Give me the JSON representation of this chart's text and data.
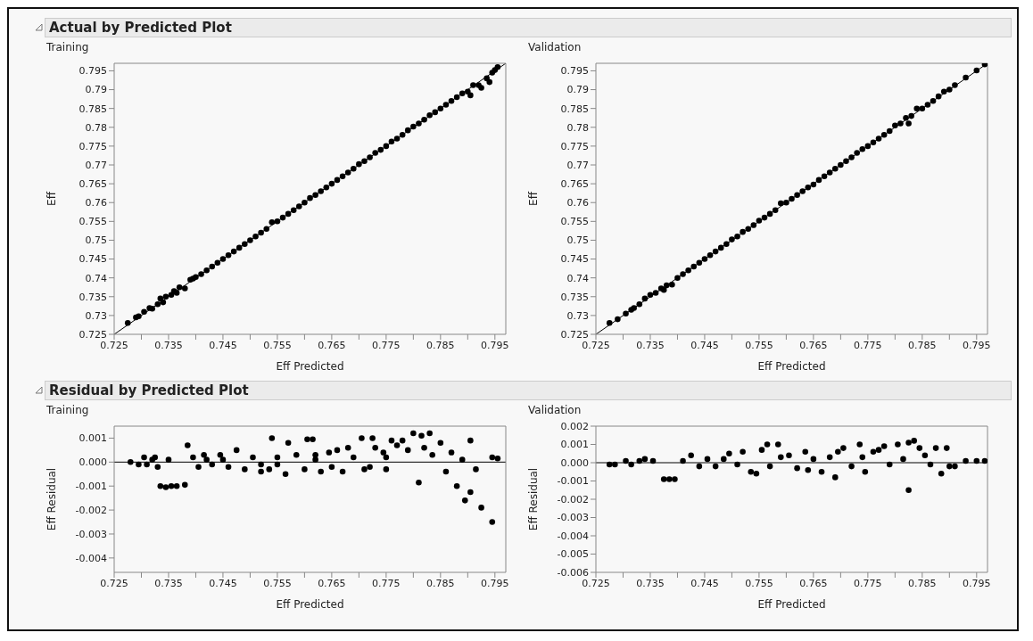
{
  "chart_data": [
    {
      "type": "scatter",
      "title": "Actual by Predicted Plot",
      "subtitle": "Training",
      "xlabel": "Eff Predicted",
      "ylabel": "Eff",
      "grid": false,
      "xlim": [
        0.725,
        0.797
      ],
      "xticks": [
        0.725,
        {
          "value": 0.73,
          "label": null
        },
        0.735,
        {
          "value": 0.74,
          "label": null
        },
        0.745,
        {
          "value": 0.75,
          "label": null
        },
        0.755,
        {
          "value": 0.76,
          "label": null
        },
        0.765,
        {
          "value": 0.77,
          "label": null
        },
        0.775,
        {
          "value": 0.78,
          "label": null
        },
        0.785,
        {
          "value": 0.79,
          "label": null
        },
        0.795
      ],
      "ylim": [
        0.725,
        0.797
      ],
      "yticks": [
        0.725,
        0.73,
        0.735,
        0.74,
        0.745,
        0.75,
        0.755,
        0.76,
        0.765,
        0.77,
        0.775,
        0.78,
        0.785,
        0.79,
        0.795
      ],
      "series": [
        {
          "type": "scatter",
          "marker": "circle",
          "color": "#000000",
          "x": [
            0.7275,
            0.729,
            0.7295,
            0.7305,
            0.7315,
            0.732,
            0.733,
            0.7335,
            0.734,
            0.7345,
            0.7355,
            0.736,
            0.7365,
            0.737,
            0.738,
            0.739,
            0.7395,
            0.74,
            0.741,
            0.742,
            0.743,
            0.744,
            0.745,
            0.746,
            0.747,
            0.748,
            0.749,
            0.75,
            0.751,
            0.752,
            0.753,
            0.754,
            0.755,
            0.756,
            0.757,
            0.758,
            0.759,
            0.76,
            0.761,
            0.762,
            0.763,
            0.764,
            0.765,
            0.766,
            0.767,
            0.768,
            0.769,
            0.77,
            0.771,
            0.772,
            0.773,
            0.774,
            0.775,
            0.776,
            0.777,
            0.778,
            0.779,
            0.78,
            0.781,
            0.782,
            0.783,
            0.784,
            0.785,
            0.786,
            0.787,
            0.788,
            0.789,
            0.79,
            0.7905,
            0.791,
            0.792,
            0.7925,
            0.7935,
            0.794,
            0.7945,
            0.795,
            0.7955
          ],
          "values": [
            0.728,
            0.7295,
            0.7298,
            0.731,
            0.732,
            0.7318,
            0.733,
            0.7345,
            0.7335,
            0.735,
            0.7355,
            0.7365,
            0.736,
            0.7375,
            0.7372,
            0.7395,
            0.7398,
            0.7402,
            0.741,
            0.742,
            0.743,
            0.744,
            0.745,
            0.746,
            0.747,
            0.748,
            0.749,
            0.75,
            0.751,
            0.752,
            0.753,
            0.7548,
            0.755,
            0.756,
            0.757,
            0.758,
            0.759,
            0.76,
            0.7612,
            0.762,
            0.763,
            0.764,
            0.765,
            0.766,
            0.767,
            0.768,
            0.769,
            0.7702,
            0.771,
            0.772,
            0.7732,
            0.774,
            0.775,
            0.7762,
            0.777,
            0.778,
            0.7792,
            0.7802,
            0.781,
            0.782,
            0.7832,
            0.784,
            0.785,
            0.786,
            0.787,
            0.788,
            0.789,
            0.7895,
            0.7885,
            0.7912,
            0.7912,
            0.7905,
            0.793,
            0.792,
            0.7945,
            0.7952,
            0.796
          ]
        },
        {
          "type": "line",
          "color": "#000000",
          "x": [
            0.725,
            0.797
          ],
          "values": [
            0.725,
            0.797
          ]
        }
      ]
    },
    {
      "type": "scatter",
      "subtitle": "Validation",
      "xlabel": "Eff Predicted",
      "ylabel": "Eff",
      "grid": false,
      "xlim": [
        0.725,
        0.797
      ],
      "xticks": [
        0.725,
        {
          "value": 0.73,
          "label": null
        },
        0.735,
        {
          "value": 0.74,
          "label": null
        },
        0.745,
        {
          "value": 0.75,
          "label": null
        },
        0.755,
        {
          "value": 0.76,
          "label": null
        },
        0.765,
        {
          "value": 0.77,
          "label": null
        },
        0.775,
        {
          "value": 0.78,
          "label": null
        },
        0.785,
        {
          "value": 0.79,
          "label": null
        },
        0.795
      ],
      "ylim": [
        0.725,
        0.797
      ],
      "yticks": [
        0.725,
        0.73,
        0.735,
        0.74,
        0.745,
        0.75,
        0.755,
        0.76,
        0.765,
        0.77,
        0.775,
        0.78,
        0.785,
        0.79,
        0.795
      ],
      "series": [
        {
          "type": "scatter",
          "marker": "circle",
          "color": "#000000",
          "x": [
            0.7275,
            0.729,
            0.7305,
            0.7315,
            0.732,
            0.733,
            0.734,
            0.735,
            0.736,
            0.737,
            0.7375,
            0.738,
            0.739,
            0.74,
            0.741,
            0.742,
            0.743,
            0.744,
            0.745,
            0.746,
            0.747,
            0.748,
            0.749,
            0.75,
            0.751,
            0.752,
            0.753,
            0.754,
            0.755,
            0.756,
            0.757,
            0.758,
            0.759,
            0.76,
            0.761,
            0.762,
            0.763,
            0.764,
            0.765,
            0.766,
            0.767,
            0.768,
            0.769,
            0.77,
            0.771,
            0.772,
            0.773,
            0.774,
            0.775,
            0.776,
            0.777,
            0.778,
            0.779,
            0.78,
            0.781,
            0.782,
            0.7825,
            0.783,
            0.784,
            0.785,
            0.786,
            0.787,
            0.788,
            0.789,
            0.79,
            0.791,
            0.793,
            0.795,
            0.7965
          ],
          "values": [
            0.728,
            0.729,
            0.7305,
            0.7315,
            0.732,
            0.733,
            0.7345,
            0.7355,
            0.736,
            0.7372,
            0.7368,
            0.738,
            0.7382,
            0.74,
            0.741,
            0.742,
            0.743,
            0.744,
            0.745,
            0.746,
            0.747,
            0.748,
            0.749,
            0.7502,
            0.751,
            0.7522,
            0.753,
            0.754,
            0.7552,
            0.756,
            0.757,
            0.758,
            0.7598,
            0.76,
            0.761,
            0.762,
            0.763,
            0.764,
            0.7648,
            0.766,
            0.767,
            0.768,
            0.769,
            0.77,
            0.771,
            0.772,
            0.7732,
            0.7742,
            0.775,
            0.776,
            0.777,
            0.778,
            0.779,
            0.7805,
            0.781,
            0.7825,
            0.781,
            0.783,
            0.785,
            0.785,
            0.786,
            0.787,
            0.7882,
            0.7895,
            0.79,
            0.7912,
            0.7932,
            0.7951,
            0.7967
          ]
        },
        {
          "type": "line",
          "color": "#000000",
          "x": [
            0.725,
            0.797
          ],
          "values": [
            0.725,
            0.797
          ]
        }
      ]
    },
    {
      "type": "scatter",
      "title": "Residual by Predicted Plot",
      "subtitle": "Training",
      "xlabel": "Eff Predicted",
      "ylabel": "Eff Residual",
      "grid": false,
      "xlim": [
        0.725,
        0.797
      ],
      "xticks": [
        0.725,
        {
          "value": 0.73,
          "label": null
        },
        0.735,
        {
          "value": 0.74,
          "label": null
        },
        0.745,
        {
          "value": 0.75,
          "label": null
        },
        0.755,
        {
          "value": 0.76,
          "label": null
        },
        0.765,
        {
          "value": 0.77,
          "label": null
        },
        0.775,
        {
          "value": 0.78,
          "label": null
        },
        0.785,
        {
          "value": 0.79,
          "label": null
        },
        0.795
      ],
      "ylim": [
        -0.0046,
        0.0015
      ],
      "yticks": [
        -0.004,
        -0.003,
        -0.002,
        -0.001,
        {
          "value": 0,
          "label": "0.000"
        },
        0.001
      ],
      "ref_lines": [
        {
          "axis": "y",
          "value": 0,
          "color": "#000000"
        }
      ],
      "series": [
        {
          "type": "scatter",
          "marker": "circle",
          "color": "#000000",
          "x": [
            0.728,
            0.7295,
            0.7305,
            0.731,
            0.732,
            0.7325,
            0.733,
            0.7335,
            0.7345,
            0.7355,
            0.7365,
            0.738,
            0.7385,
            0.7395,
            0.7405,
            0.7415,
            0.743,
            0.7445,
            0.746,
            0.7475,
            0.749,
            0.7505,
            0.752,
            0.7535,
            0.754,
            0.755,
            0.7565,
            0.757,
            0.7585,
            0.76,
            0.7605,
            0.7615,
            0.762,
            0.763,
            0.7645,
            0.766,
            0.767,
            0.768,
            0.769,
            0.7705,
            0.771,
            0.7725,
            0.773,
            0.7745,
            0.775,
            0.776,
            0.777,
            0.778,
            0.779,
            0.78,
            0.781,
            0.7815,
            0.782,
            0.783,
            0.7835,
            0.785,
            0.786,
            0.787,
            0.788,
            0.789,
            0.7895,
            0.7905,
            0.7905,
            0.7915,
            0.7925,
            0.7945,
            0.7945,
            0.7955,
            0.735,
            0.745,
            0.755,
            0.765,
            0.775,
            0.742,
            0.752,
            0.762,
            0.772
          ],
          "values": [
            0,
            -0.0001,
            0.0002,
            -0.0001,
            0.0001,
            0.0002,
            -0.0002,
            -0.001,
            -0.00105,
            -0.001,
            -0.001,
            -0.00095,
            0.0007,
            0.0002,
            -0.0002,
            0.0003,
            -0.0001,
            0.0003,
            -0.0002,
            0.0005,
            -0.0003,
            0.0002,
            -0.0004,
            -0.0003,
            0.001,
            0.0002,
            -0.0005,
            0.0008,
            0.0003,
            -0.0003,
            0.00095,
            0.00095,
            0.0003,
            -0.0004,
            0.0004,
            0.0005,
            -0.0004,
            0.0006,
            0.0002,
            0.001,
            -0.0003,
            0.001,
            0.0006,
            0.0004,
            -0.0003,
            0.0009,
            0.0007,
            0.0009,
            0.0005,
            0.0012,
            -0.00085,
            0.0011,
            0.0006,
            0.0012,
            0.0003,
            0.0008,
            -0.0004,
            0.0004,
            -0.001,
            0.0001,
            -0.0016,
            -0.00125,
            0.0009,
            -0.0003,
            -0.0019,
            -0.0025,
            0.0002,
            0.00015,
            0.0001,
            0.0001,
            -0.0001,
            -0.0002,
            0.0002,
            0.0001,
            -0.0001,
            0.0001,
            -0.0002
          ]
        }
      ]
    },
    {
      "type": "scatter",
      "subtitle": "Validation",
      "xlabel": "Eff Predicted",
      "ylabel": "Eff Residual",
      "grid": false,
      "xlim": [
        0.725,
        0.797
      ],
      "xticks": [
        0.725,
        {
          "value": 0.73,
          "label": null
        },
        0.735,
        {
          "value": 0.74,
          "label": null
        },
        0.745,
        {
          "value": 0.75,
          "label": null
        },
        0.755,
        {
          "value": 0.76,
          "label": null
        },
        0.765,
        {
          "value": 0.77,
          "label": null
        },
        0.775,
        {
          "value": 0.78,
          "label": null
        },
        0.785,
        {
          "value": 0.79,
          "label": null
        },
        0.795
      ],
      "ylim": [
        -0.006,
        0.002
      ],
      "yticks": [
        -0.006,
        -0.005,
        -0.004,
        -0.003,
        -0.002,
        -0.001,
        {
          "value": 0,
          "label": "0.000"
        },
        0.001,
        0.002
      ],
      "ref_lines": [
        {
          "axis": "y",
          "value": 0,
          "color": "#000000"
        }
      ],
      "series": [
        {
          "type": "scatter",
          "marker": "circle",
          "color": "#000000",
          "x": [
            0.7275,
            0.7285,
            0.7305,
            0.7315,
            0.733,
            0.734,
            0.7355,
            0.7375,
            0.7385,
            0.7395,
            0.741,
            0.7425,
            0.744,
            0.7455,
            0.747,
            0.7485,
            0.7495,
            0.751,
            0.752,
            0.7535,
            0.7545,
            0.7555,
            0.7565,
            0.757,
            0.7585,
            0.759,
            0.7605,
            0.762,
            0.7635,
            0.764,
            0.765,
            0.7665,
            0.768,
            0.769,
            0.7695,
            0.7705,
            0.772,
            0.7735,
            0.774,
            0.7745,
            0.776,
            0.777,
            0.778,
            0.779,
            0.7805,
            0.7815,
            0.7825,
            0.7825,
            0.7835,
            0.7845,
            0.7855,
            0.7865,
            0.7875,
            0.7885,
            0.7895,
            0.79,
            0.791,
            0.793,
            0.795,
            0.7965
          ],
          "values": [
            -0.0001,
            -0.0001,
            0.0001,
            -0.0001,
            0.0001,
            0.0002,
            0.0001,
            -0.0009,
            -0.0009,
            -0.0009,
            0.0001,
            0.0004,
            -0.0002,
            0.0002,
            -0.0002,
            0.0002,
            0.0005,
            -0.0001,
            0.0006,
            -0.0005,
            -0.0006,
            0.0007,
            0.001,
            -0.0002,
            0.001,
            0.0003,
            0.0004,
            -0.0003,
            0.0006,
            -0.0004,
            0.0002,
            -0.0005,
            0.0003,
            -0.0008,
            0.0006,
            0.0008,
            -0.0002,
            0.001,
            0.0003,
            -0.0005,
            0.0006,
            0.0007,
            0.0009,
            -0.0001,
            0.001,
            0.0002,
            -0.0015,
            0.0011,
            0.0012,
            0.0008,
            0.0004,
            -0.0001,
            0.0008,
            -0.0006,
            0.0008,
            -0.0002,
            -0.0002,
            0.0001,
            0.0001,
            0.0001
          ]
        }
      ]
    }
  ]
}
